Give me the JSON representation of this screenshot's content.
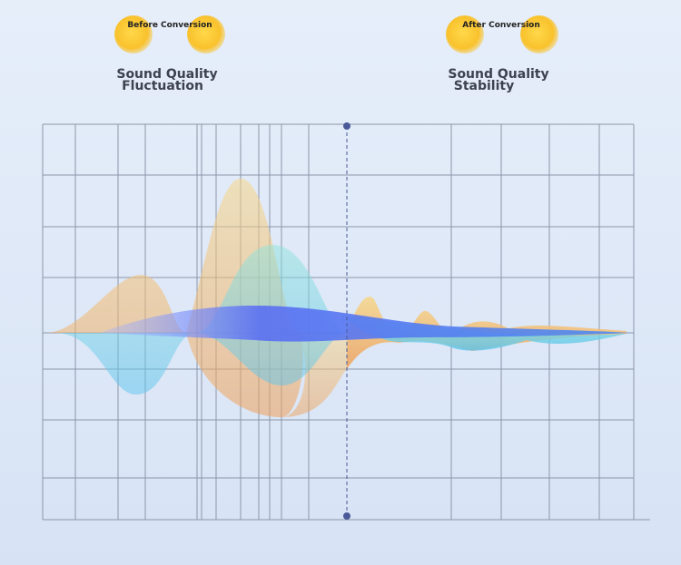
{
  "left": {
    "badge": "Before Conversion",
    "caption": [
      "Sound Quality",
      "Fluctuation"
    ]
  },
  "right": {
    "badge": "After Conversion",
    "caption": [
      "Sound Quality",
      "Stability"
    ]
  }
}
